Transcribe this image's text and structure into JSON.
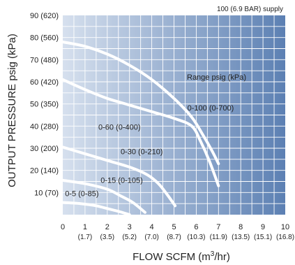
{
  "chart_data": {
    "type": "line",
    "title": "",
    "supply_note": "100 (6.9 BAR) supply",
    "legend_title": "Range psig (kPa)",
    "xlabel_main": "FLOW SCFM (m",
    "xlabel_sup": "3",
    "xlabel_end": "/hr)",
    "ylabel": "OUTPUT PRESSURE psig (kPa)",
    "xlim": [
      0,
      10
    ],
    "ylim": [
      0,
      90
    ],
    "grid": true,
    "x_ticks": [
      {
        "value": 0,
        "label": "0",
        "sub": ""
      },
      {
        "value": 1,
        "label": "1",
        "sub": "(1.7)"
      },
      {
        "value": 2,
        "label": "2",
        "sub": "(3.5)"
      },
      {
        "value": 3,
        "label": "3",
        "sub": "(5.2)"
      },
      {
        "value": 4,
        "label": "4",
        "sub": "(7.0)"
      },
      {
        "value": 5,
        "label": "5",
        "sub": "(8.7)"
      },
      {
        "value": 6,
        "label": "6",
        "sub": "(10.3)"
      },
      {
        "value": 7,
        "label": "7",
        "sub": "(11.9)"
      },
      {
        "value": 8,
        "label": "8",
        "sub": "(13.5)"
      },
      {
        "value": 9,
        "label": "9",
        "sub": "(15.1)"
      },
      {
        "value": 10,
        "label": "10",
        "sub": "(16.8)"
      }
    ],
    "y_ticks": [
      {
        "value": 10,
        "label": "10 (70)"
      },
      {
        "value": 20,
        "label": "20 (140)"
      },
      {
        "value": 30,
        "label": "30 (200)"
      },
      {
        "value": 40,
        "label": "40 (280)"
      },
      {
        "value": 50,
        "label": "50 (350)"
      },
      {
        "value": 60,
        "label": "60 (420)"
      },
      {
        "value": 70,
        "label": "70 (480)"
      },
      {
        "value": 80,
        "label": "80 (560)"
      },
      {
        "value": 90,
        "label": "90 (620)"
      }
    ],
    "series": [
      {
        "name": "0-100 (0-700)",
        "label_at": [
          5.6,
          47
        ],
        "points": [
          [
            0,
            78
          ],
          [
            1,
            76
          ],
          [
            2,
            72.5
          ],
          [
            3,
            67.5
          ],
          [
            4,
            61
          ],
          [
            5,
            52.5
          ],
          [
            5.8,
            44
          ],
          [
            6.3,
            36
          ],
          [
            6.7,
            29
          ],
          [
            7,
            23
          ]
        ]
      },
      {
        "name": "0-60 (0-400)",
        "label_at": [
          1.6,
          38.3
        ],
        "points": [
          [
            0,
            61
          ],
          [
            1,
            56.5
          ],
          [
            2,
            52.5
          ],
          [
            3,
            49.5
          ],
          [
            4,
            46.5
          ],
          [
            5,
            43.5
          ],
          [
            5.8,
            40
          ],
          [
            6.2,
            33
          ],
          [
            6.6,
            24
          ],
          [
            7,
            13
          ]
        ]
      },
      {
        "name": "0-30 (0-210)",
        "label_at": [
          2.6,
          27.3
        ],
        "points": [
          [
            0,
            30.5
          ],
          [
            1,
            27.5
          ],
          [
            2,
            24.5
          ],
          [
            3,
            21.5
          ],
          [
            3.8,
            18
          ],
          [
            4.3,
            14
          ],
          [
            4.7,
            9
          ],
          [
            5.05,
            4
          ]
        ]
      },
      {
        "name": "0-15 (0-105)",
        "label_at": [
          1.7,
          14.3
        ],
        "points": [
          [
            0,
            15.5
          ],
          [
            1,
            14
          ],
          [
            2,
            11.5
          ],
          [
            2.6,
            8.5
          ],
          [
            3.15,
            5.5
          ],
          [
            3.7,
            1
          ]
        ]
      },
      {
        "name": "0-5 (0-85)",
        "label_at": [
          0.1,
          8.3
        ],
        "points": [
          [
            0,
            5.5
          ],
          [
            0.8,
            5
          ],
          [
            1.5,
            4
          ],
          [
            2.1,
            2.5
          ],
          [
            2.5,
            1.5
          ],
          [
            3,
            0
          ]
        ]
      }
    ],
    "colors": {
      "plot_left": "#d6e0ee",
      "plot_right": "#5c80b3",
      "grid": "#ffffff",
      "curve": "#ffffff"
    }
  }
}
